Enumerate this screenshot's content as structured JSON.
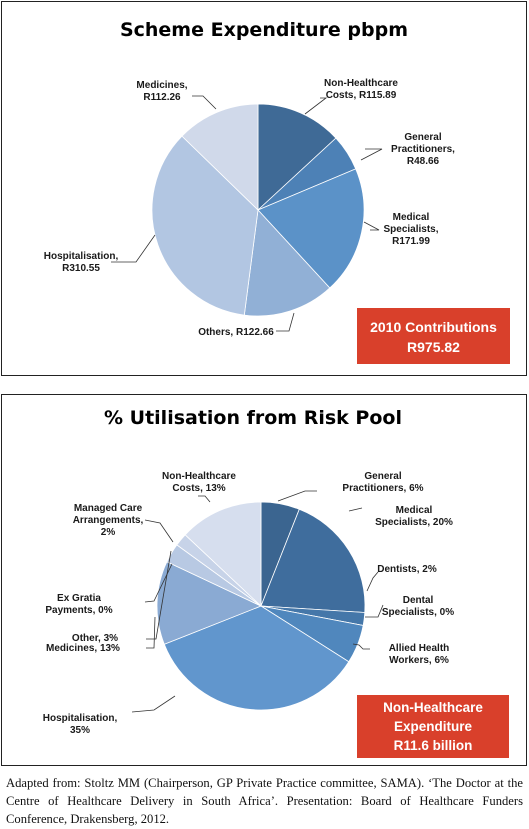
{
  "chart_data": [
    {
      "type": "pie",
      "title": "Scheme Expenditure pbpm",
      "categories": [
        "Non-Healthcare Costs",
        "General Practitioners",
        "Medical Specialists",
        "Others",
        "Hospitalisation",
        "Medicines"
      ],
      "values": [
        115.89,
        48.66,
        171.99,
        122.66,
        310.55,
        112.26
      ],
      "labels": [
        [
          "Non-Healthcare",
          "Costs, R115.89"
        ],
        [
          "General",
          "Practitioners,",
          "R48.66"
        ],
        [
          "Medical",
          "Specialists,",
          "R171.99"
        ],
        [
          "Others, R122.66"
        ],
        [
          "Hospitalisation,",
          "R310.55"
        ],
        [
          "Medicines,",
          "R112.26"
        ]
      ],
      "colors": [
        "#3f6a96",
        "#4d81b6",
        "#5b92c8",
        "#91b0d6",
        "#b2c6e2",
        "#d0d9ea"
      ],
      "callout": [
        "2010 Contributions",
        "R975.82"
      ],
      "callout_color": "#d9402b"
    },
    {
      "type": "pie",
      "title": "% Utilisation from Risk Pool",
      "categories": [
        "General Practitioners",
        "Medical Specialists",
        "Dentists",
        "Dental Specialists",
        "Allied Health Workers",
        "Hospitalisation",
        "Medicines",
        "Ex Gratia Payments",
        "Other",
        "Managed Care Arrangements",
        "Non-Healthcare Costs"
      ],
      "values": [
        6,
        20,
        2,
        0,
        6,
        35,
        13,
        0,
        3,
        2,
        13
      ],
      "labels": [
        [
          "General",
          "Practitioners, 6%"
        ],
        [
          "Medical",
          "Specialists, 20%"
        ],
        [
          "Dentists, 2%"
        ],
        [
          "Dental",
          "Specialists, 0%"
        ],
        [
          "Allied Health",
          "Workers, 6%"
        ],
        [
          "Hospitalisation,",
          "35%"
        ],
        [
          "Medicines, 13%"
        ],
        [
          "Ex Gratia",
          "Payments, 0%"
        ],
        [
          "Other, 3%"
        ],
        [
          "Managed Care",
          "Arrangements,",
          "2%"
        ],
        [
          "Non-Healthcare",
          "Costs, 13%"
        ]
      ],
      "colors": [
        "#3b6590",
        "#3f6d9d",
        "#4577a9",
        "#4a7fb3",
        "#5087bd",
        "#6196cd",
        "#8aaad3",
        "#a2badc",
        "#b8c9e3",
        "#c7d3e8",
        "#d6deee"
      ],
      "callout": [
        "Non-Healthcare",
        "Expenditure",
        "R11.6 billion"
      ],
      "callout_color": "#d9402b"
    }
  ],
  "footer": {
    "caption": "Adapted from: Stoltz MM (Chairperson, GP Private Practice committee, SAMA). ‘The Doctor at the Centre of Healthcare Delivery in South Africa’. Presentation: Board of Healthcare Funders Conference, Drakensberg, 2012."
  }
}
